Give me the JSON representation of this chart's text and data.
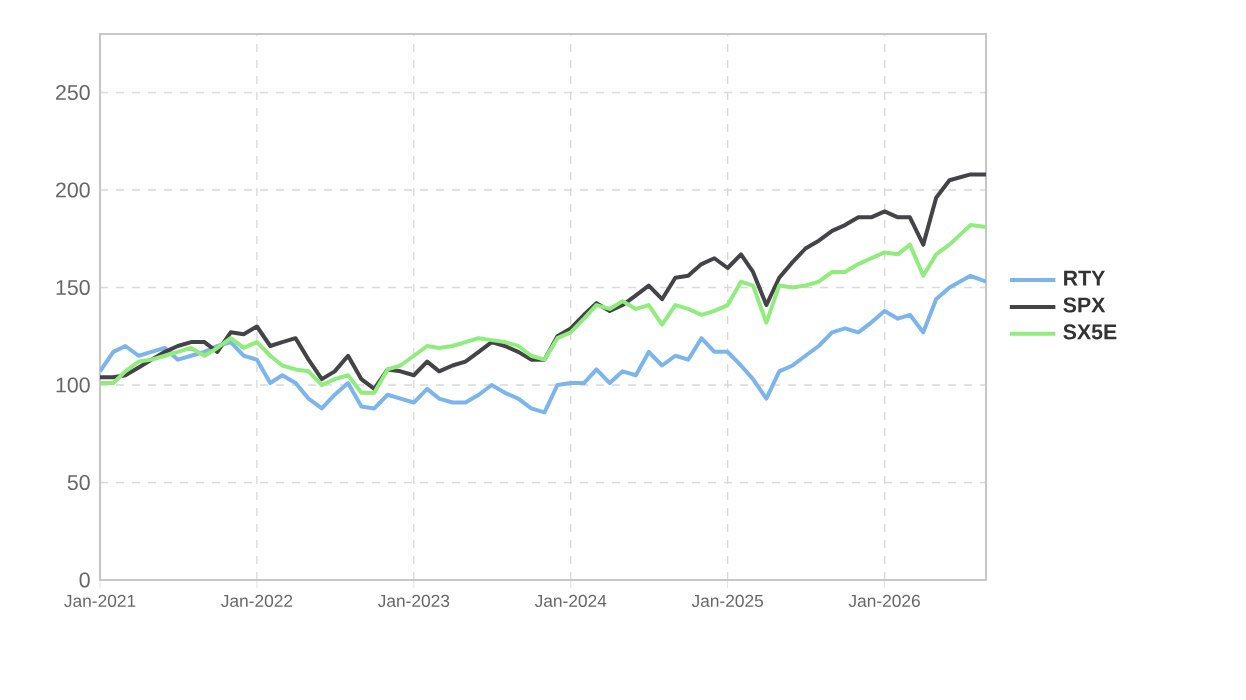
{
  "chart_data": {
    "type": "line",
    "x": [
      "2021-01-01",
      "2021-02-01",
      "2021-03-01",
      "2021-04-01",
      "2021-05-01",
      "2021-06-01",
      "2021-07-01",
      "2021-08-01",
      "2021-09-01",
      "2021-10-01",
      "2021-11-01",
      "2021-12-01",
      "2022-01-01",
      "2022-02-01",
      "2022-03-01",
      "2022-04-01",
      "2022-05-01",
      "2022-06-01",
      "2022-07-01",
      "2022-08-01",
      "2022-09-01",
      "2022-10-01",
      "2022-11-01",
      "2022-12-01",
      "2023-01-01",
      "2023-02-01",
      "2023-03-01",
      "2023-04-01",
      "2023-05-01",
      "2023-06-01",
      "2023-07-01",
      "2023-08-01",
      "2023-09-01",
      "2023-10-01",
      "2023-11-01",
      "2023-12-01",
      "2024-01-01",
      "2024-02-01",
      "2024-03-01",
      "2024-04-01",
      "2024-05-01",
      "2024-06-01",
      "2024-07-01",
      "2024-08-01",
      "2024-09-01",
      "2024-10-01",
      "2024-11-01",
      "2024-12-01",
      "2025-01-01",
      "2025-02-01",
      "2025-03-01",
      "2025-04-01",
      "2025-05-01",
      "2025-06-01",
      "2025-07-01",
      "2025-08-01",
      "2025-09-01",
      "2025-10-01",
      "2025-11-01",
      "2025-12-01",
      "2026-01-01",
      "2026-02-01",
      "2026-03-01",
      "2026-04-01",
      "2026-05-01",
      "2026-06-01",
      "2026-07-20",
      "2026-08-25"
    ],
    "series": [
      {
        "name": "RTY",
        "color": "#7cb5ec",
        "values": [
          107,
          117,
          120,
          115,
          117,
          119,
          113,
          115,
          117,
          120,
          122,
          115,
          113,
          101,
          105,
          101,
          93,
          88,
          95,
          101,
          89,
          88,
          95,
          93,
          91,
          98,
          93,
          91,
          91,
          95,
          100,
          96,
          93,
          88,
          86,
          100,
          101,
          101,
          108,
          101,
          107,
          105,
          117,
          110,
          115,
          113,
          124,
          117,
          117,
          110,
          103,
          93,
          107,
          110,
          115,
          120,
          127,
          129,
          127,
          132,
          138,
          134,
          136,
          127,
          144,
          150,
          156,
          153
        ]
      },
      {
        "name": "SPX",
        "color": "#434348",
        "values": [
          104,
          104,
          105,
          109,
          113,
          117,
          120,
          122,
          122,
          117,
          127,
          126,
          130,
          120,
          122,
          124,
          113,
          103,
          107,
          115,
          103,
          98,
          108,
          107,
          105,
          112,
          107,
          110,
          112,
          117,
          122,
          120,
          117,
          113,
          113,
          125,
          129,
          136,
          142,
          138,
          141,
          146,
          151,
          144,
          155,
          156,
          162,
          165,
          160,
          167,
          158,
          141,
          155,
          163,
          170,
          174,
          179,
          182,
          186,
          186,
          189,
          186,
          186,
          172,
          196,
          205,
          208,
          208
        ]
      },
      {
        "name": "SX5E",
        "color": "#90ed7d",
        "values": [
          101,
          101,
          107,
          112,
          113,
          115,
          117,
          119,
          115,
          119,
          124,
          119,
          122,
          115,
          110,
          108,
          107,
          100,
          103,
          105,
          96,
          96,
          108,
          110,
          115,
          120,
          119,
          120,
          122,
          124,
          123,
          122,
          120,
          115,
          113,
          124,
          127,
          134,
          141,
          139,
          143,
          139,
          141,
          131,
          141,
          139,
          136,
          138,
          141,
          153,
          151,
          132,
          151,
          150,
          151,
          153,
          158,
          158,
          162,
          165,
          168,
          167,
          172,
          156,
          167,
          172,
          182,
          181
        ]
      }
    ],
    "xlim": [
      "2021-01-01",
      "2026-08-25"
    ],
    "xticks": [
      {
        "value": "2021-01-01",
        "label": "Jan-2021"
      },
      {
        "value": "2022-01-01",
        "label": "Jan-2022"
      },
      {
        "value": "2023-01-01",
        "label": "Jan-2023"
      },
      {
        "value": "2024-01-01",
        "label": "Jan-2024"
      },
      {
        "value": "2025-01-01",
        "label": "Jan-2025"
      },
      {
        "value": "2026-01-01",
        "label": "Jan-2026"
      }
    ],
    "ylim": [
      0,
      280
    ],
    "yticks": [
      0,
      50,
      100,
      150,
      200,
      250
    ],
    "grid": true,
    "legend": "right",
    "marker": "none",
    "line_style": "solid"
  }
}
